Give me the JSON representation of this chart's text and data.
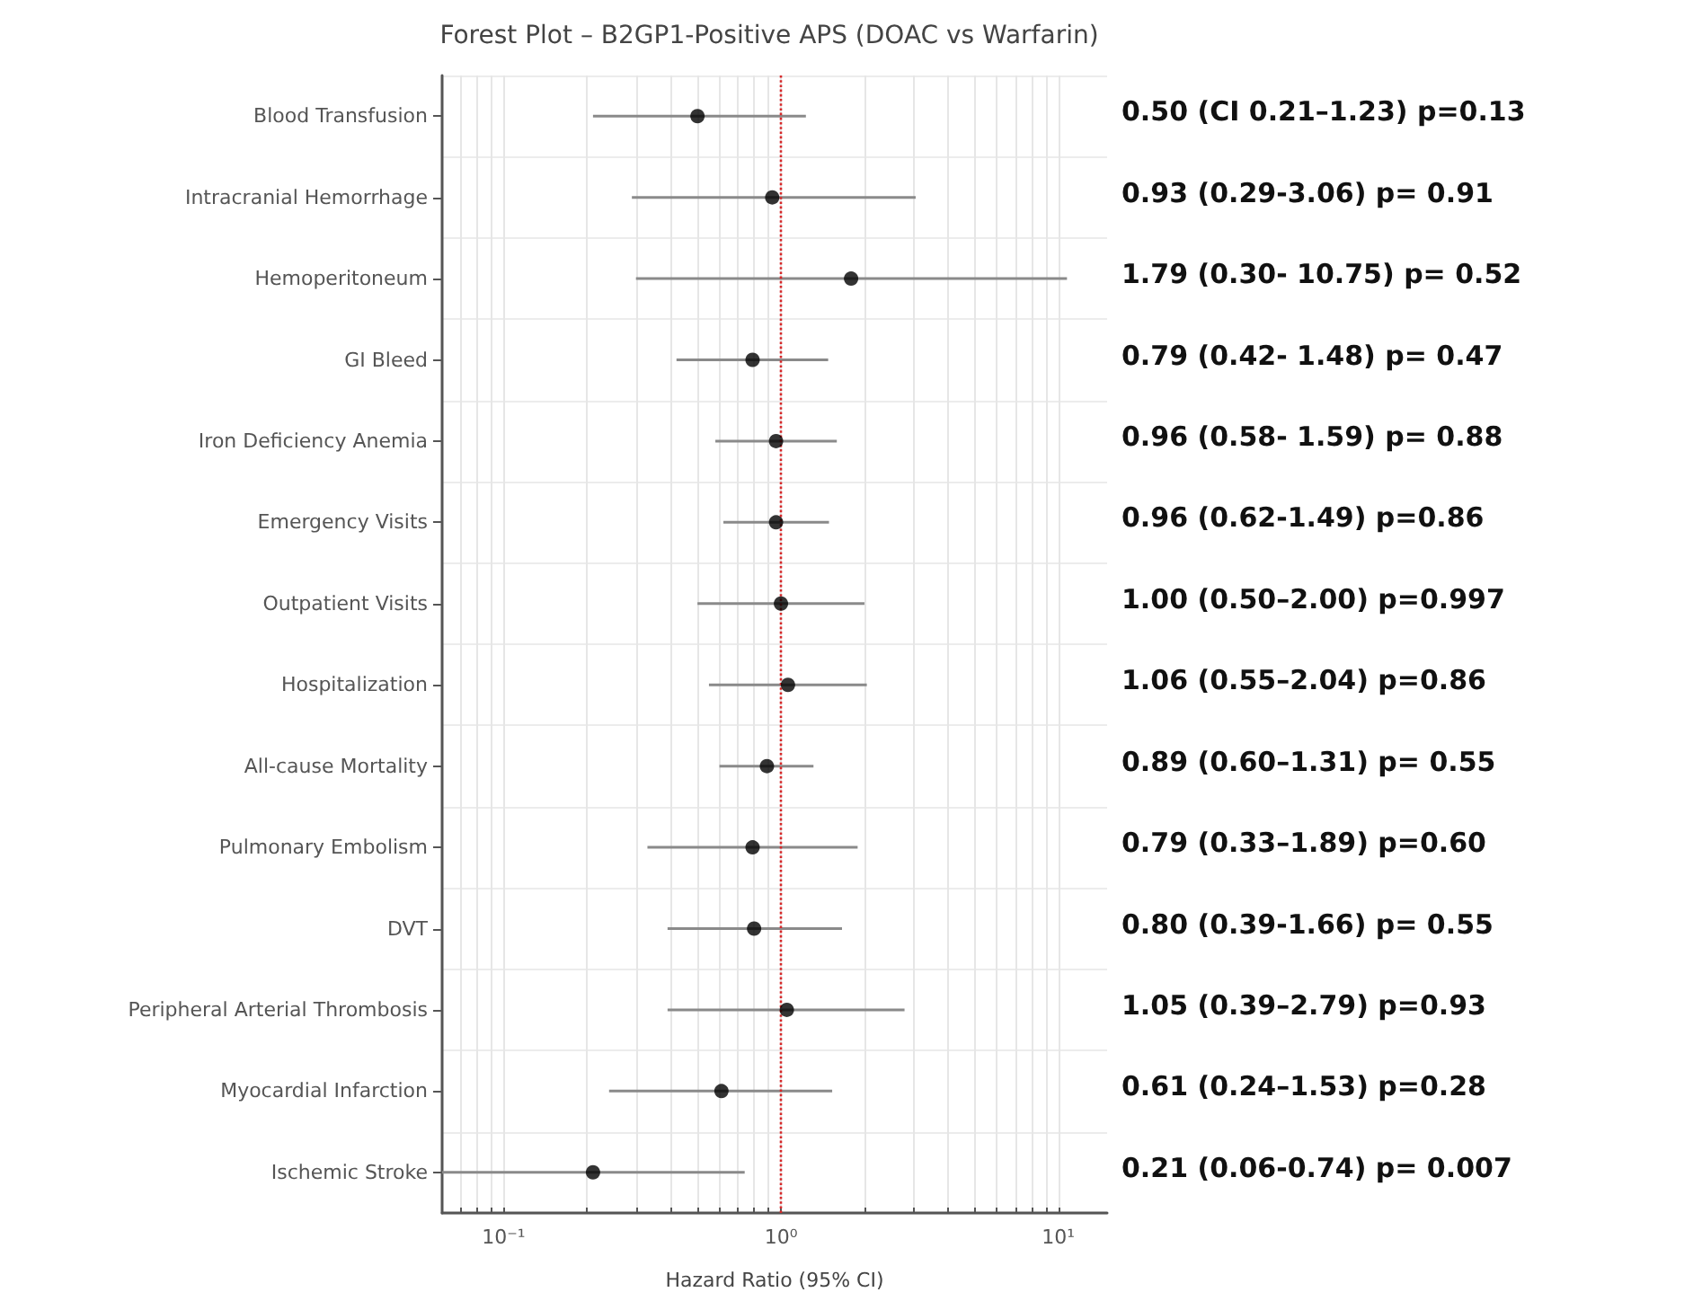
{
  "chart_data": {
    "type": "scatter",
    "orientation": "horizontal",
    "title": "Forest Plot – B2GP1-Positive APS (DOAC vs Warfarin)",
    "xlabel": "Hazard Ratio (95% CI)",
    "categories": [
      "Blood Transfusion",
      "Intracranial Hemorrhage",
      "Hemoperitoneum",
      "GI Bleed",
      "Iron Deficiency Anemia",
      "Emergency Visits",
      "Outpatient Visits",
      "Hospitalization",
      "All-cause Mortality",
      "Pulmonary Embolism",
      "DVT",
      "Peripheral Arterial Thrombosis",
      "Myocardial Infarction",
      "Ischemic Stroke"
    ],
    "series": [
      {
        "color": "#000000",
        "values": [
          0.5,
          0.93,
          1.79,
          0.79,
          0.96,
          0.96,
          1.0,
          1.06,
          0.89,
          0.79,
          0.8,
          1.05,
          0.61,
          0.21
        ],
        "errors": [
          [
            0.21,
            1.23
          ],
          [
            0.29,
            3.06
          ],
          [
            0.3,
            10.75
          ],
          [
            0.42,
            1.48
          ],
          [
            0.58,
            1.59
          ],
          [
            0.62,
            1.49
          ],
          [
            0.5,
            2.0
          ],
          [
            0.55,
            2.04
          ],
          [
            0.6,
            1.31
          ],
          [
            0.33,
            1.89
          ],
          [
            0.39,
            1.66
          ],
          [
            0.39,
            2.79
          ],
          [
            0.24,
            1.53
          ],
          [
            0.06,
            0.74
          ]
        ]
      }
    ],
    "annotations": [
      "0.50 (CI 0.21–1.23) p=0.13",
      "0.93 (0.29-3.06) p= 0.91",
      "1.79 (0.30- 10.75) p= 0.52",
      "0.79 (0.42- 1.48) p= 0.47",
      "0.96 (0.58- 1.59) p= 0.88",
      "0.96 (0.62-1.49) p=0.86",
      "1.00 (0.50–2.00) p=0.997",
      "1.06 (0.55–2.04) p=0.86",
      "0.89 (0.60–1.31) p= 0.55",
      "0.79 (0.33–1.89) p=0.60",
      "0.80 (0.39-1.66) p= 0.55",
      "1.05 (0.39–2.79) p=0.93",
      "0.61 (0.24–1.53) p=0.28",
      "0.21 (0.06-0.74) p= 0.007"
    ],
    "xlim": [
      0.06,
      15
    ],
    "xticks": [
      {
        "value": 0.07,
        "label": null
      },
      {
        "value": 0.08,
        "label": null
      },
      {
        "value": 0.09,
        "label": null
      },
      {
        "value": 0.1,
        "label": "10⁻¹"
      },
      {
        "value": 0.2,
        "label": null
      },
      {
        "value": 0.3,
        "label": null
      },
      {
        "value": 0.4,
        "label": null
      },
      {
        "value": 0.5,
        "label": null
      },
      {
        "value": 0.6,
        "label": null
      },
      {
        "value": 0.7,
        "label": null
      },
      {
        "value": 0.8,
        "label": null
      },
      {
        "value": 0.9,
        "label": null
      },
      {
        "value": 1,
        "label": "10⁰"
      },
      {
        "value": 2,
        "label": null
      },
      {
        "value": 3,
        "label": null
      },
      {
        "value": 4,
        "label": null
      },
      {
        "value": 5,
        "label": null
      },
      {
        "value": 6,
        "label": null
      },
      {
        "value": 7,
        "label": null
      },
      {
        "value": 8,
        "label": null
      },
      {
        "value": 9,
        "label": null
      },
      {
        "value": 10,
        "label": "10¹"
      }
    ],
    "log": "x",
    "grid": true,
    "marker": "circle",
    "ref_lines": [
      {
        "axis": "x",
        "value": 1,
        "color": "#d62728",
        "line_style": "dotted"
      }
    ]
  }
}
